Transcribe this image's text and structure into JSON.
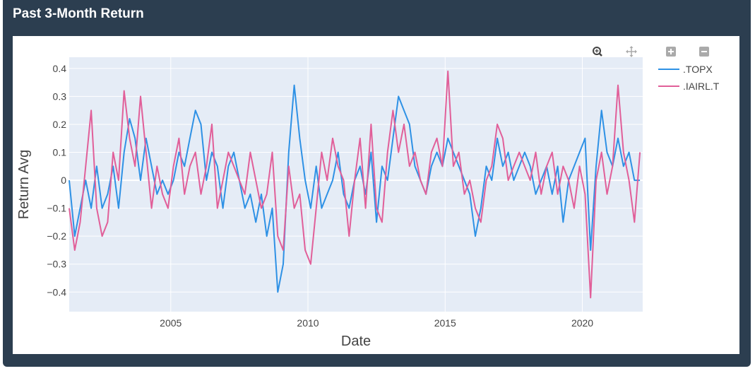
{
  "panel": {
    "title": "Past 3-Month Return"
  },
  "modebar": [
    {
      "name": "zoom-icon",
      "label": "Zoom"
    },
    {
      "name": "pan-icon",
      "label": "Pan"
    },
    {
      "name": "zoom-in-icon",
      "label": "Zoom in"
    },
    {
      "name": "zoom-out-icon",
      "label": "Zoom out"
    }
  ],
  "colors": {
    "topx": "#2e91e5",
    "iairl": "#e15f99",
    "plot_bg": "#e5ecf6",
    "panel_bg": "#2c3e50"
  },
  "chart_data": {
    "type": "line",
    "xlabel": "Date",
    "ylabel": "Return Avg",
    "xlim": [
      2001.3,
      2022.2
    ],
    "ylim": [
      -0.47,
      0.44
    ],
    "xticks": [
      2005,
      2010,
      2015,
      2020
    ],
    "yticks": [
      -0.4,
      -0.3,
      -0.2,
      -0.1,
      0,
      0.1,
      0.2,
      0.3,
      0.4
    ],
    "ytick_labels": [
      "−0.4",
      "−0.3",
      "−0.2",
      "−0.1",
      "0",
      "0.1",
      "0.2",
      "0.3",
      "0.4"
    ],
    "grid": true,
    "legend_position": "top-right",
    "series": [
      {
        "name": ".TOPX",
        "color": "#2e91e5",
        "x": [
          2001.3,
          2001.5,
          2001.7,
          2001.9,
          2002.1,
          2002.3,
          2002.5,
          2002.7,
          2002.9,
          2003.1,
          2003.3,
          2003.5,
          2003.7,
          2003.9,
          2004.1,
          2004.3,
          2004.5,
          2004.7,
          2004.9,
          2005.1,
          2005.3,
          2005.5,
          2005.7,
          2005.9,
          2006.1,
          2006.3,
          2006.5,
          2006.7,
          2006.9,
          2007.1,
          2007.3,
          2007.5,
          2007.7,
          2007.9,
          2008.1,
          2008.3,
          2008.5,
          2008.7,
          2008.9,
          2009.1,
          2009.3,
          2009.5,
          2009.7,
          2009.9,
          2010.1,
          2010.3,
          2010.5,
          2010.7,
          2010.9,
          2011.1,
          2011.3,
          2011.5,
          2011.7,
          2011.9,
          2012.1,
          2012.3,
          2012.5,
          2012.7,
          2012.9,
          2013.1,
          2013.3,
          2013.5,
          2013.7,
          2013.9,
          2014.1,
          2014.3,
          2014.5,
          2014.7,
          2014.9,
          2015.1,
          2015.3,
          2015.5,
          2015.7,
          2015.9,
          2016.1,
          2016.3,
          2016.5,
          2016.7,
          2016.9,
          2017.1,
          2017.3,
          2017.5,
          2017.7,
          2017.9,
          2018.1,
          2018.3,
          2018.5,
          2018.7,
          2018.9,
          2019.1,
          2019.3,
          2019.5,
          2019.7,
          2019.9,
          2020.1,
          2020.3,
          2020.5,
          2020.7,
          2020.9,
          2021.1,
          2021.3,
          2021.5,
          2021.7,
          2021.9,
          2022.1
        ],
        "y": [
          0.0,
          -0.2,
          -0.1,
          0.0,
          -0.1,
          0.05,
          -0.1,
          -0.05,
          0.05,
          -0.1,
          0.1,
          0.22,
          0.15,
          0.0,
          0.15,
          0.05,
          -0.05,
          0.0,
          -0.05,
          0.0,
          0.1,
          0.05,
          0.15,
          0.25,
          0.2,
          0.0,
          0.1,
          0.05,
          -0.1,
          0.05,
          0.1,
          0.0,
          -0.1,
          -0.05,
          -0.15,
          -0.05,
          -0.2,
          -0.1,
          -0.4,
          -0.3,
          0.1,
          0.34,
          0.15,
          0.0,
          -0.1,
          0.05,
          -0.1,
          -0.05,
          0.0,
          0.1,
          -0.05,
          -0.1,
          0.0,
          0.05,
          -0.05,
          0.1,
          -0.15,
          0.05,
          0.0,
          0.15,
          0.3,
          0.25,
          0.2,
          0.05,
          0.0,
          -0.05,
          0.05,
          0.1,
          0.05,
          0.15,
          0.1,
          0.05,
          0.0,
          -0.05,
          -0.2,
          -0.1,
          0.05,
          0.0,
          0.15,
          0.05,
          0.1,
          0.0,
          0.05,
          0.1,
          0.05,
          -0.05,
          0.0,
          0.05,
          -0.05,
          0.05,
          -0.15,
          0.0,
          0.05,
          0.1,
          0.15,
          -0.25,
          0.05,
          0.25,
          0.1,
          0.05,
          0.15,
          0.05,
          0.1,
          0.0,
          0.0
        ]
      },
      {
        "name": ".IAIRL.T",
        "color": "#e15f99",
        "x": [
          2001.3,
          2001.5,
          2001.7,
          2001.9,
          2002.1,
          2002.3,
          2002.5,
          2002.7,
          2002.9,
          2003.1,
          2003.3,
          2003.5,
          2003.7,
          2003.9,
          2004.1,
          2004.3,
          2004.5,
          2004.7,
          2004.9,
          2005.1,
          2005.3,
          2005.5,
          2005.7,
          2005.9,
          2006.1,
          2006.3,
          2006.5,
          2006.7,
          2006.9,
          2007.1,
          2007.3,
          2007.5,
          2007.7,
          2007.9,
          2008.1,
          2008.3,
          2008.5,
          2008.7,
          2008.9,
          2009.1,
          2009.3,
          2009.5,
          2009.7,
          2009.9,
          2010.1,
          2010.3,
          2010.5,
          2010.7,
          2010.9,
          2011.1,
          2011.3,
          2011.5,
          2011.7,
          2011.9,
          2012.1,
          2012.3,
          2012.5,
          2012.7,
          2012.9,
          2013.1,
          2013.3,
          2013.5,
          2013.7,
          2013.9,
          2014.1,
          2014.3,
          2014.5,
          2014.7,
          2014.9,
          2015.1,
          2015.3,
          2015.5,
          2015.7,
          2015.9,
          2016.1,
          2016.3,
          2016.5,
          2016.7,
          2016.9,
          2017.1,
          2017.3,
          2017.5,
          2017.7,
          2017.9,
          2018.1,
          2018.3,
          2018.5,
          2018.7,
          2018.9,
          2019.1,
          2019.3,
          2019.5,
          2019.7,
          2019.9,
          2020.1,
          2020.3,
          2020.5,
          2020.7,
          2020.9,
          2021.1,
          2021.3,
          2021.5,
          2021.7,
          2021.9,
          2022.1
        ],
        "y": [
          -0.1,
          -0.25,
          -0.15,
          0.05,
          0.25,
          -0.1,
          -0.2,
          -0.15,
          0.1,
          0.0,
          0.32,
          0.15,
          0.05,
          0.3,
          0.1,
          -0.1,
          0.05,
          -0.05,
          -0.1,
          0.05,
          0.15,
          -0.05,
          0.05,
          0.1,
          -0.05,
          0.05,
          0.2,
          -0.1,
          0.0,
          0.1,
          0.05,
          0.0,
          -0.05,
          0.1,
          0.0,
          -0.1,
          -0.05,
          0.1,
          -0.2,
          -0.25,
          0.05,
          -0.1,
          -0.05,
          -0.25,
          -0.3,
          -0.1,
          0.1,
          0.0,
          0.15,
          0.05,
          0.0,
          -0.2,
          0.0,
          0.15,
          -0.1,
          0.2,
          -0.1,
          -0.15,
          0.1,
          0.25,
          0.1,
          0.2,
          0.05,
          0.1,
          0.0,
          -0.05,
          0.1,
          0.15,
          0.05,
          0.39,
          0.05,
          0.1,
          -0.05,
          0.0,
          -0.1,
          -0.15,
          0.0,
          0.05,
          0.2,
          0.15,
          0.0,
          0.05,
          0.1,
          0.05,
          0.0,
          0.1,
          -0.05,
          0.05,
          0.1,
          -0.05,
          0.05,
          0.0,
          -0.1,
          0.05,
          -0.05,
          -0.42,
          0.0,
          0.1,
          -0.05,
          0.05,
          0.34,
          0.1,
          0.0,
          -0.15,
          0.1
        ]
      }
    ]
  }
}
